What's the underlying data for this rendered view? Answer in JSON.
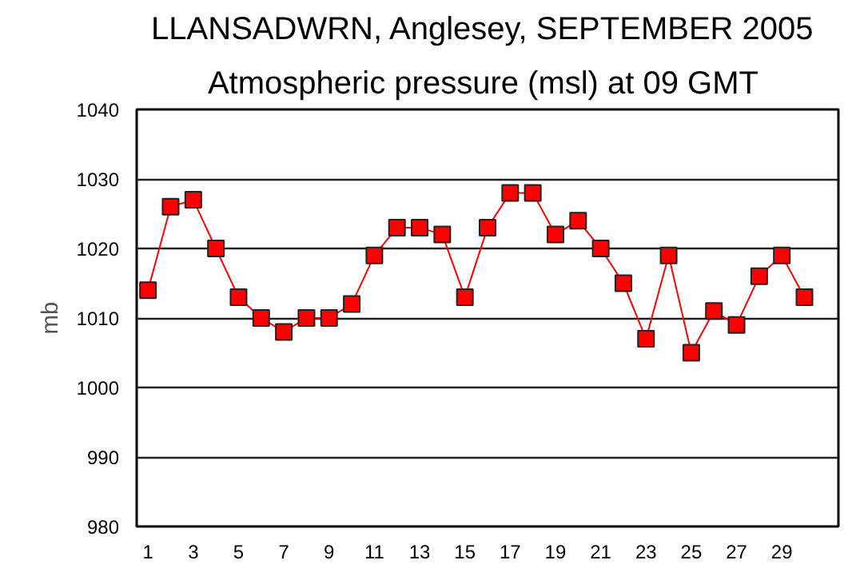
{
  "chart_data": {
    "type": "line",
    "title": "LLANSADWRN, Anglesey,  SEPTEMBER 2005",
    "subtitle": "Atmospheric pressure  (msl) at 09 GMT",
    "ylabel": "mb",
    "x": [
      1,
      2,
      3,
      4,
      5,
      6,
      7,
      8,
      9,
      10,
      11,
      12,
      13,
      14,
      15,
      16,
      17,
      18,
      19,
      20,
      21,
      22,
      23,
      24,
      25,
      26,
      27,
      28,
      29,
      30
    ],
    "series": [
      {
        "color": "#ff0000",
        "values": [
          1014,
          1026,
          1027,
          1020,
          1013,
          1010,
          1008,
          1010,
          1010,
          1012,
          1019,
          1023,
          1023,
          1022,
          1013,
          1023,
          1028,
          1028,
          1022,
          1024,
          1020,
          1015,
          1007,
          1019,
          1005,
          1011,
          1009,
          1016,
          1019,
          1013
        ]
      }
    ],
    "xlim": [
      0.5,
      31.5
    ],
    "xticks": [
      1,
      3,
      5,
      7,
      9,
      11,
      13,
      15,
      17,
      19,
      21,
      23,
      25,
      27,
      29
    ],
    "ylim": [
      980,
      1040
    ],
    "yticks": [
      980,
      990,
      1000,
      1010,
      1020,
      1030,
      1040
    ],
    "grid": "y",
    "marker": "square",
    "line_style": "solid"
  }
}
